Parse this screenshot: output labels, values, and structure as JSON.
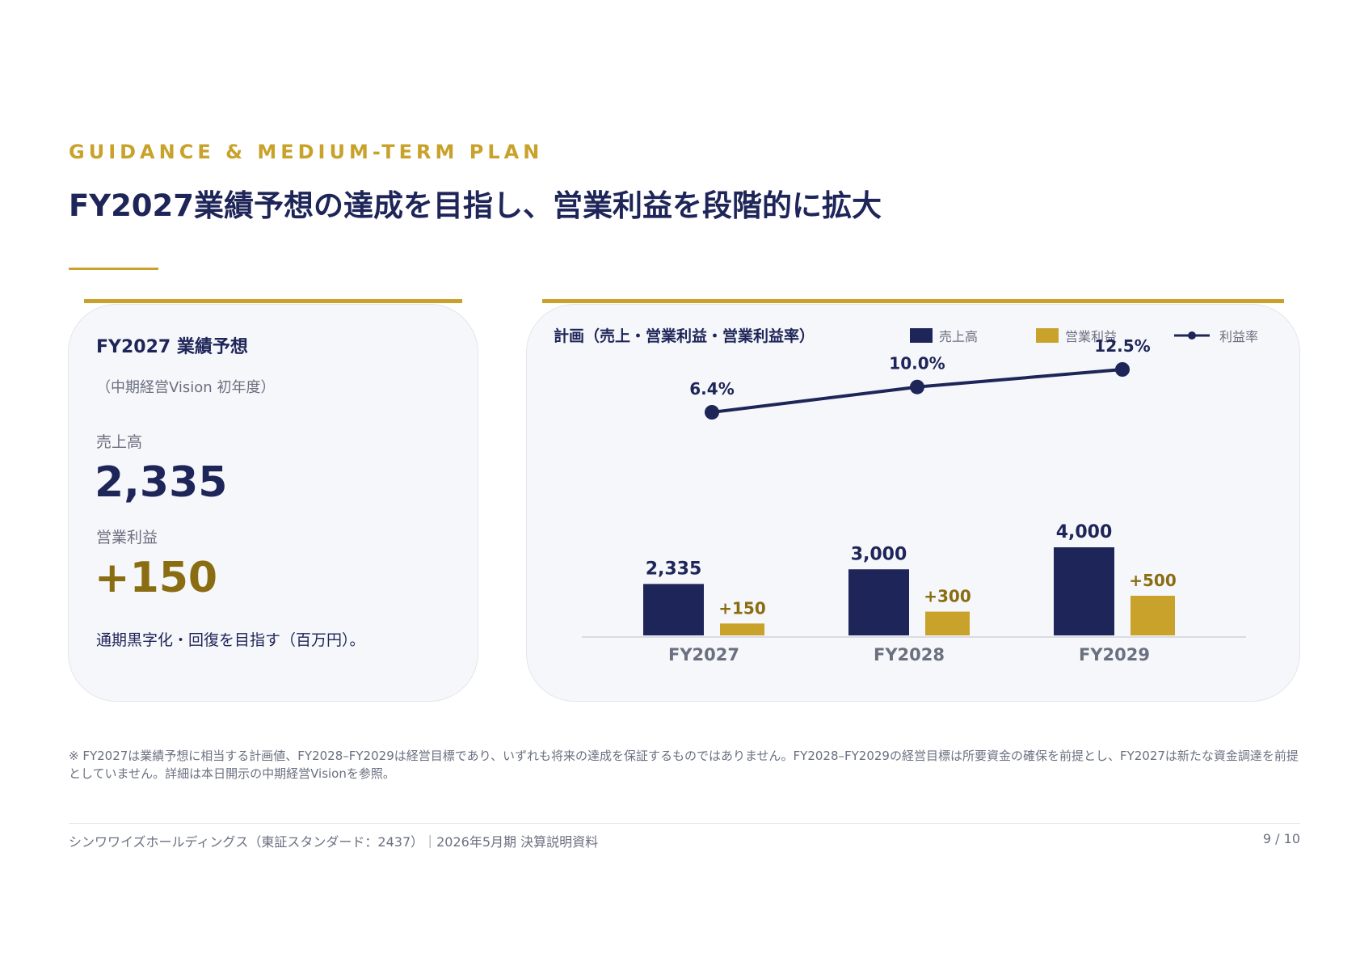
{
  "header": {
    "eyebrow": "GUIDANCE & MEDIUM-TERM PLAN",
    "title": "FY2027業績予想の達成を目指し、営業利益を段階的に拡大"
  },
  "forecast_card": {
    "heading": "FY2027 業績予想",
    "subheading": "（中期経営Vision 初年度）",
    "sales_label": "売上高",
    "sales_value": "2,335",
    "profit_label": "営業利益",
    "profit_value": "+150",
    "note": "通期黒字化・回復を目指す（百万円）。"
  },
  "plan_card": {
    "title": "計画（売上・営業利益・営業利益率）"
  },
  "chart_data": {
    "type": "bar",
    "categories": [
      "FY2027",
      "FY2028",
      "FY2029"
    ],
    "series": [
      {
        "name": "売上高",
        "kind": "bar",
        "color": "#1e2558",
        "values": [
          2335,
          3000,
          4000
        ],
        "labels": [
          "2,335",
          "3,000",
          "4,000"
        ]
      },
      {
        "name": "営業利益",
        "kind": "bar",
        "color": "#c9a22b",
        "values": [
          150,
          300,
          500
        ],
        "labels": [
          "+150",
          "+300",
          "+500"
        ]
      },
      {
        "name": "利益率",
        "kind": "line",
        "color": "#1e2558",
        "values": [
          6.4,
          10.0,
          12.5
        ],
        "labels": [
          "6.4%",
          "10.0%",
          "12.5%"
        ]
      }
    ],
    "legend_position": "top-right",
    "grid": false
  },
  "colors": {
    "navy": "#1e2558",
    "gold": "#c9a22b",
    "profit_text": "#8a6d12"
  },
  "footnote": "※ FY2027は業績予想に相当する計画値、FY2028–FY2029は経営目標であり、いずれも将来の達成を保証するものではありません。FY2028–FY2029の経営目標は所要資金の確保を前提とし、FY2027は新たな資金調達を前提としていません。詳細は本日開示の中期経営Visionを参照。",
  "footer": {
    "company": "シンワワイズホールディングス（東証スタンダード：2437）｜2026年5月期 決算説明資料",
    "page": "9 / 10"
  }
}
